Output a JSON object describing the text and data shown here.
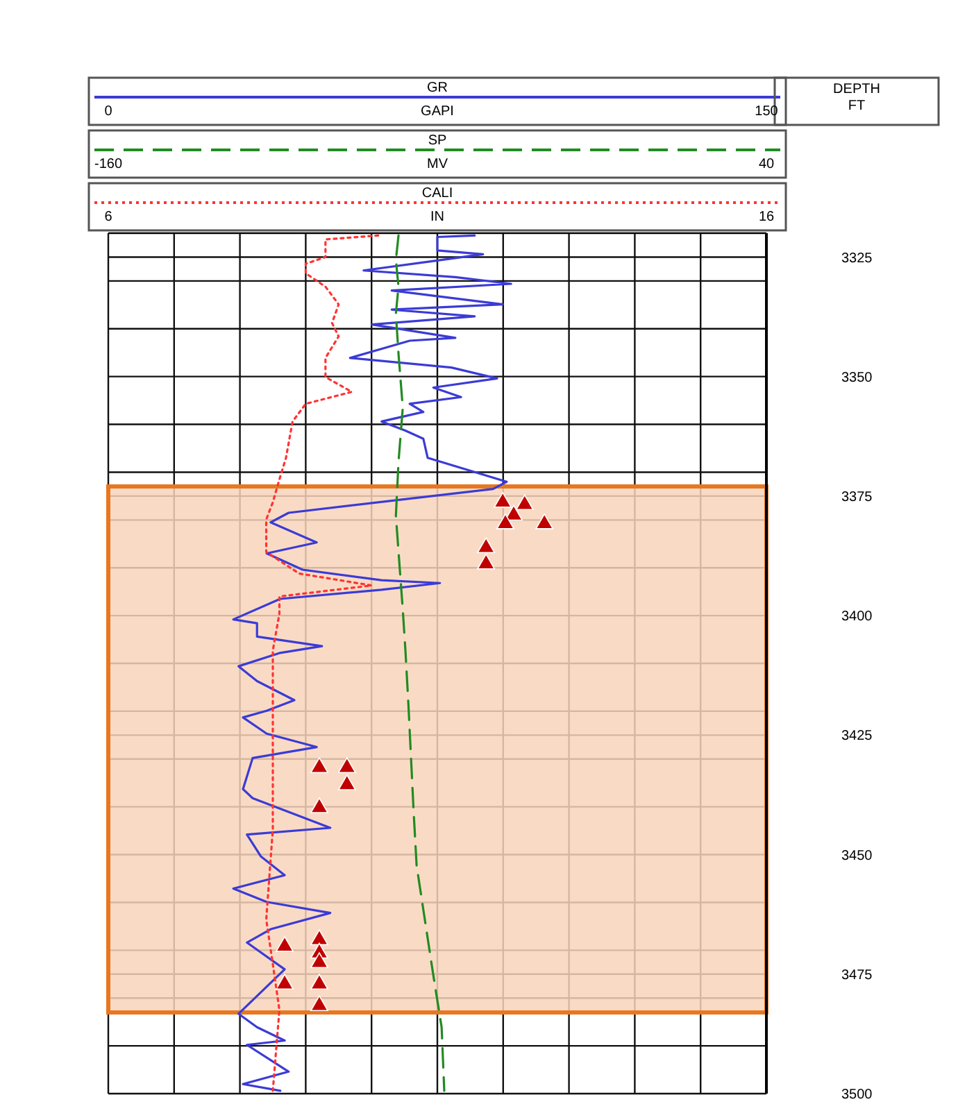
{
  "chart_data": [
    {
      "type": "line",
      "legend": "top",
      "grid": true,
      "xlabel": "GAPI",
      "xlim": [
        0,
        150
      ],
      "xticks": [
        0,
        {
          "value": 15,
          "label": null
        },
        {
          "value": 30,
          "label": null
        },
        {
          "value": 45,
          "label": null
        },
        {
          "value": 60,
          "label": null
        },
        {
          "value": 75,
          "label": null
        },
        {
          "value": 90,
          "label": null
        },
        {
          "value": 105,
          "label": null
        },
        {
          "value": 120,
          "label": null
        },
        {
          "value": 135,
          "label": null
        },
        150
      ],
      "ylabel": "DEPTH FT",
      "ylim": [
        3500,
        3320
      ],
      "yticks": [
        3325,
        {
          "value": 3330,
          "label": null
        },
        {
          "value": 3340,
          "label": null
        },
        3350,
        {
          "value": 3360,
          "label": null
        },
        {
          "value": 3370,
          "label": null
        },
        3375,
        {
          "value": 3380,
          "label": null
        },
        {
          "value": 3390,
          "label": null
        },
        3400,
        {
          "value": 3410,
          "label": null
        },
        {
          "value": 3420,
          "label": null
        },
        3425,
        {
          "value": 3430,
          "label": null
        },
        {
          "value": 3440,
          "label": null
        },
        3450,
        {
          "value": 3460,
          "label": null
        },
        {
          "value": 3470,
          "label": null
        },
        3475,
        {
          "value": 3480,
          "label": null
        },
        {
          "value": 3490,
          "label": null
        },
        3500
      ],
      "bands": [
        {
          "axis": "y",
          "from": 3373,
          "to": 3483,
          "color": "#f8d5bb"
        }
      ],
      "series": [
        {
          "name": "GR",
          "color": "#3b3bd6",
          "line_style": "solid",
          "x": [
            83.5,
            75.0,
            75.0,
            85.4,
            75.9,
            58.2,
            79.1,
            91.8,
            64.6,
            89.9,
            64.6,
            83.5,
            60.1,
            79.1,
            68.7,
            55.1,
            78.2,
            88.6,
            74.1,
            80.4,
            68.7,
            71.8,
            62.3,
            67.7,
            71.8,
            72.8,
            90.8,
            87.7,
            41.1,
            37.0,
            47.5,
            36.1,
            44.3,
            62.3,
            75.6,
            62.3,
            39.2,
            28.5,
            33.9,
            33.9,
            48.7,
            39.2,
            29.7,
            33.9,
            42.4,
            36.1,
            30.7,
            36.1,
            47.5,
            32.9,
            30.7,
            32.9,
            50.6,
            31.6,
            34.8,
            40.2,
            28.5,
            36.1,
            50.6,
            37.0,
            31.6,
            40.2,
            29.7,
            33.9,
            40.2,
            31.6,
            41.1,
            30.7,
            39.2
          ],
          "values": [
            3320.5,
            3320.8,
            3323.6,
            3324.4,
            3325.6,
            3327.8,
            3329.2,
            3330.6,
            3332.0,
            3334.9,
            3336.0,
            3337.4,
            3339.1,
            3341.9,
            3342.5,
            3346.1,
            3348.1,
            3350.4,
            3352.3,
            3354.3,
            3355.7,
            3357.4,
            3359.4,
            3361.3,
            3363.0,
            3367.0,
            3372.0,
            3373.5,
            3378.5,
            3380.5,
            3384.7,
            3387.0,
            3390.4,
            3392.6,
            3393.2,
            3394.6,
            3396.5,
            3400.8,
            3401.6,
            3404.4,
            3406.4,
            3407.8,
            3410.6,
            3413.7,
            3417.7,
            3419.9,
            3421.3,
            3424.7,
            3427.5,
            3429.8,
            3436.3,
            3438.2,
            3444.4,
            3445.8,
            3450.4,
            3454.3,
            3457.1,
            3459.9,
            3462.2,
            3465.6,
            3468.4,
            3474.0,
            3483.3,
            3486.1,
            3488.9,
            3489.8,
            3495.4,
            3498.0,
            3499.4
          ]
        },
        {
          "type": "scatter",
          "color": "#c00000",
          "marker": "triangle",
          "x": [
            89.9,
            94.9,
            92.4,
            99.4,
            90.5,
            86.1,
            86.1,
            48.1,
            54.4,
            54.4,
            48.1,
            40.2,
            48.1,
            48.1,
            48.1,
            40.2,
            48.1,
            48.1
          ],
          "values": [
            3376.3,
            3376.8,
            3379.0,
            3380.8,
            3380.8,
            3385.8,
            3389.2,
            3431.8,
            3431.8,
            3435.4,
            3440.2,
            3469.2,
            3467.8,
            3470.6,
            3472.6,
            3477.1,
            3477.1,
            3481.6
          ]
        }
      ]
    },
    {
      "type": "line",
      "legend": "top",
      "tick_labels": "x",
      "xlabel": "MV",
      "xlim": [
        -160,
        40
      ],
      "xticks": [
        -160,
        40
      ],
      "ylim": [
        3500,
        3320
      ],
      "series": [
        {
          "name": "SP",
          "color": "#228b22",
          "line_style": "dashed",
          "x": [
            -71.8,
            -72.6,
            -71.8,
            -72.6,
            -71.8,
            -70.5,
            -71.8,
            -72.6,
            -71.4,
            -70.5,
            -69.7,
            -68.8,
            -68.0,
            -67.2,
            -66.3,
            -63.8,
            -61.3,
            -58.7,
            -57.9
          ],
          "values": [
            3320.5,
            3325.6,
            3331.2,
            3336.8,
            3345.3,
            3356.5,
            3367.8,
            3379.1,
            3390.4,
            3398.8,
            3407.3,
            3418.5,
            3429.8,
            3441.1,
            3452.3,
            3463.6,
            3474.9,
            3486.1,
            3499.4
          ]
        }
      ]
    },
    {
      "type": "line",
      "legend": "top",
      "tick_labels": "x",
      "xlabel": "IN",
      "xlim": [
        6,
        16
      ],
      "xticks": [
        6,
        16
      ],
      "ylim": [
        3500,
        3320
      ],
      "series": [
        {
          "name": "CALI",
          "color": "#ff3333",
          "line_style": "dotted",
          "x": [
            10.1,
            9.3,
            9.3,
            9.0,
            9.0,
            9.3,
            9.5,
            9.4,
            9.5,
            9.3,
            9.3,
            9.7,
            9.0,
            8.8,
            8.7,
            8.6,
            8.5,
            8.4,
            8.4,
            8.9,
            10.0,
            8.6,
            8.6,
            8.5,
            8.5,
            8.5,
            8.5,
            8.5,
            8.4,
            8.5,
            8.6,
            8.5
          ],
          "values": [
            3320.5,
            3321.3,
            3325.0,
            3326.4,
            3328.4,
            3331.2,
            3334.9,
            3338.8,
            3341.6,
            3346.1,
            3350.1,
            3353.2,
            3355.7,
            3359.4,
            3367.0,
            3371.5,
            3376.3,
            3379.9,
            3386.7,
            3391.2,
            3393.7,
            3396.0,
            3399.6,
            3407.3,
            3418.5,
            3425.0,
            3436.3,
            3444.7,
            3463.6,
            3472.9,
            3482.5,
            3499.4
          ]
        }
      ]
    }
  ]
}
